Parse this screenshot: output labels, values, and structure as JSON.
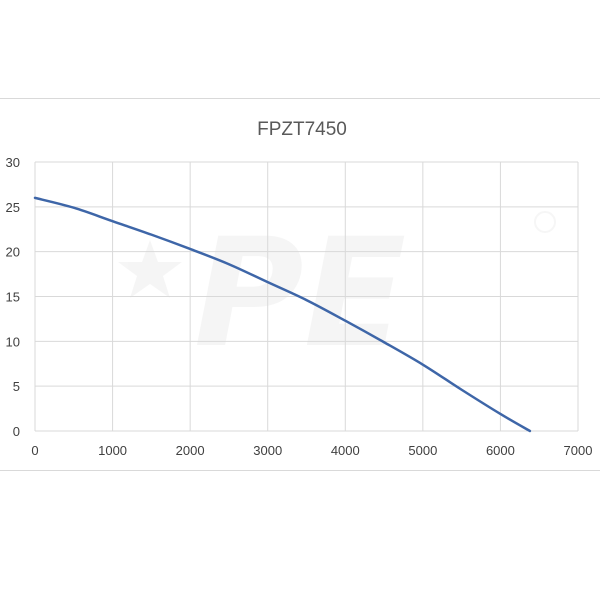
{
  "chart_data": {
    "type": "line",
    "title": "FPZT7450",
    "xlabel": "",
    "ylabel": "",
    "xlim": [
      0,
      7000
    ],
    "ylim": [
      0,
      30
    ],
    "x_ticks": [
      0,
      1000,
      2000,
      3000,
      4000,
      5000,
      6000,
      7000
    ],
    "y_ticks": [
      0,
      5,
      10,
      15,
      20,
      25,
      30
    ],
    "grid": true,
    "legend": "none",
    "series": [
      {
        "color": "#3e66a8",
        "points": [
          [
            0,
            26.0
          ],
          [
            500,
            24.9
          ],
          [
            1000,
            23.4
          ],
          [
            1500,
            21.9
          ],
          [
            2000,
            20.3
          ],
          [
            2500,
            18.6
          ],
          [
            3000,
            16.6
          ],
          [
            3500,
            14.6
          ],
          [
            4000,
            12.3
          ],
          [
            4500,
            9.9
          ],
          [
            5000,
            7.4
          ],
          [
            5500,
            4.6
          ],
          [
            6000,
            1.9
          ],
          [
            6380,
            0
          ]
        ]
      }
    ],
    "watermark": "PE"
  }
}
